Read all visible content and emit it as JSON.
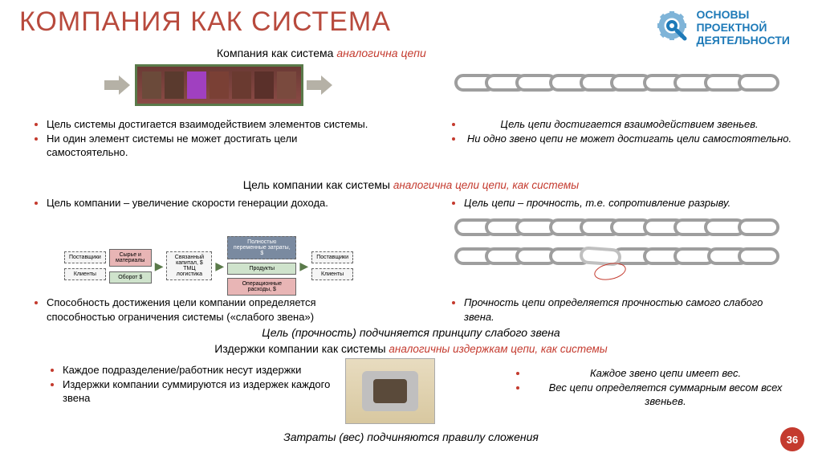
{
  "colors": {
    "title": "#b84a3d",
    "subtitle_accent": "#c43a2e",
    "logo_text": "#1e7ab8",
    "text": "#333333"
  },
  "title": "КОМПАНИЯ КАК СИСТЕМА",
  "logo": {
    "line1": "ОСНОВЫ",
    "line2": "ПРОЕКТНОЙ",
    "line3": "ДЕЯТЕЛЬНОСТИ"
  },
  "subtitle1": {
    "plain": "Компания как система",
    "hl": "аналогична цепи"
  },
  "bricks": [
    "#6b4a3a",
    "#5a3a2e",
    "#a040c0",
    "#7a4035",
    "#6a3a30",
    "#5a302a",
    "#7a4a3e"
  ],
  "left_bullets_1": [
    "Цель системы достигается взаимодействием элементов системы.",
    "Ни один элемент системы не может достигать цели самостоятельно."
  ],
  "right_bullets_1": [
    "Цель цепи достигается взаимодействием звеньев.",
    "Ни одно звено цепи не может достигать цели самостоятельно."
  ],
  "heading2": {
    "plain": "Цель компании как системы",
    "hl": "аналогична цели цепи, как системы"
  },
  "left_bullets_2": [
    "Цель компании – увеличение скорости генерации дохода."
  ],
  "right_bullets_2": [
    "Цель цепи – прочность, т.е. сопротивление разрыву."
  ],
  "flow": {
    "suppliers": "Поставщики",
    "clients": "Клиенты",
    "raw": "Сырье и материалы",
    "turnover": "Оборот $",
    "center": "Связанный капитал, $ ТМЦ логистика",
    "products": "Продукты",
    "opex": "Операционные расходы, $",
    "fixed": "Полностью переменные затраты, $"
  },
  "left_bullets_3": [
    "Способность достижения цели компании определяется способностью ограничения системы («слабого звена»)"
  ],
  "right_bullets_3": [
    "Прочность цепи определяется прочностью самого слабого звена."
  ],
  "heading3": "Цель (прочность) подчиняется принципу слабого звена",
  "heading4": {
    "plain": "Издержки компании как системы",
    "hl": "аналогичны издержкам цепи, как системы"
  },
  "left_bullets_4": [
    "Каждое подразделение/работник несут издержки",
    "Издержки компании суммируются из издержек каждого звена"
  ],
  "right_bullets_4": [
    "Каждое звено цепи имеет вес.",
    "Вес цепи определяется суммарным весом всех звеньев."
  ],
  "footer": "Затраты (вес) подчиняются правилу сложения",
  "page": "36"
}
